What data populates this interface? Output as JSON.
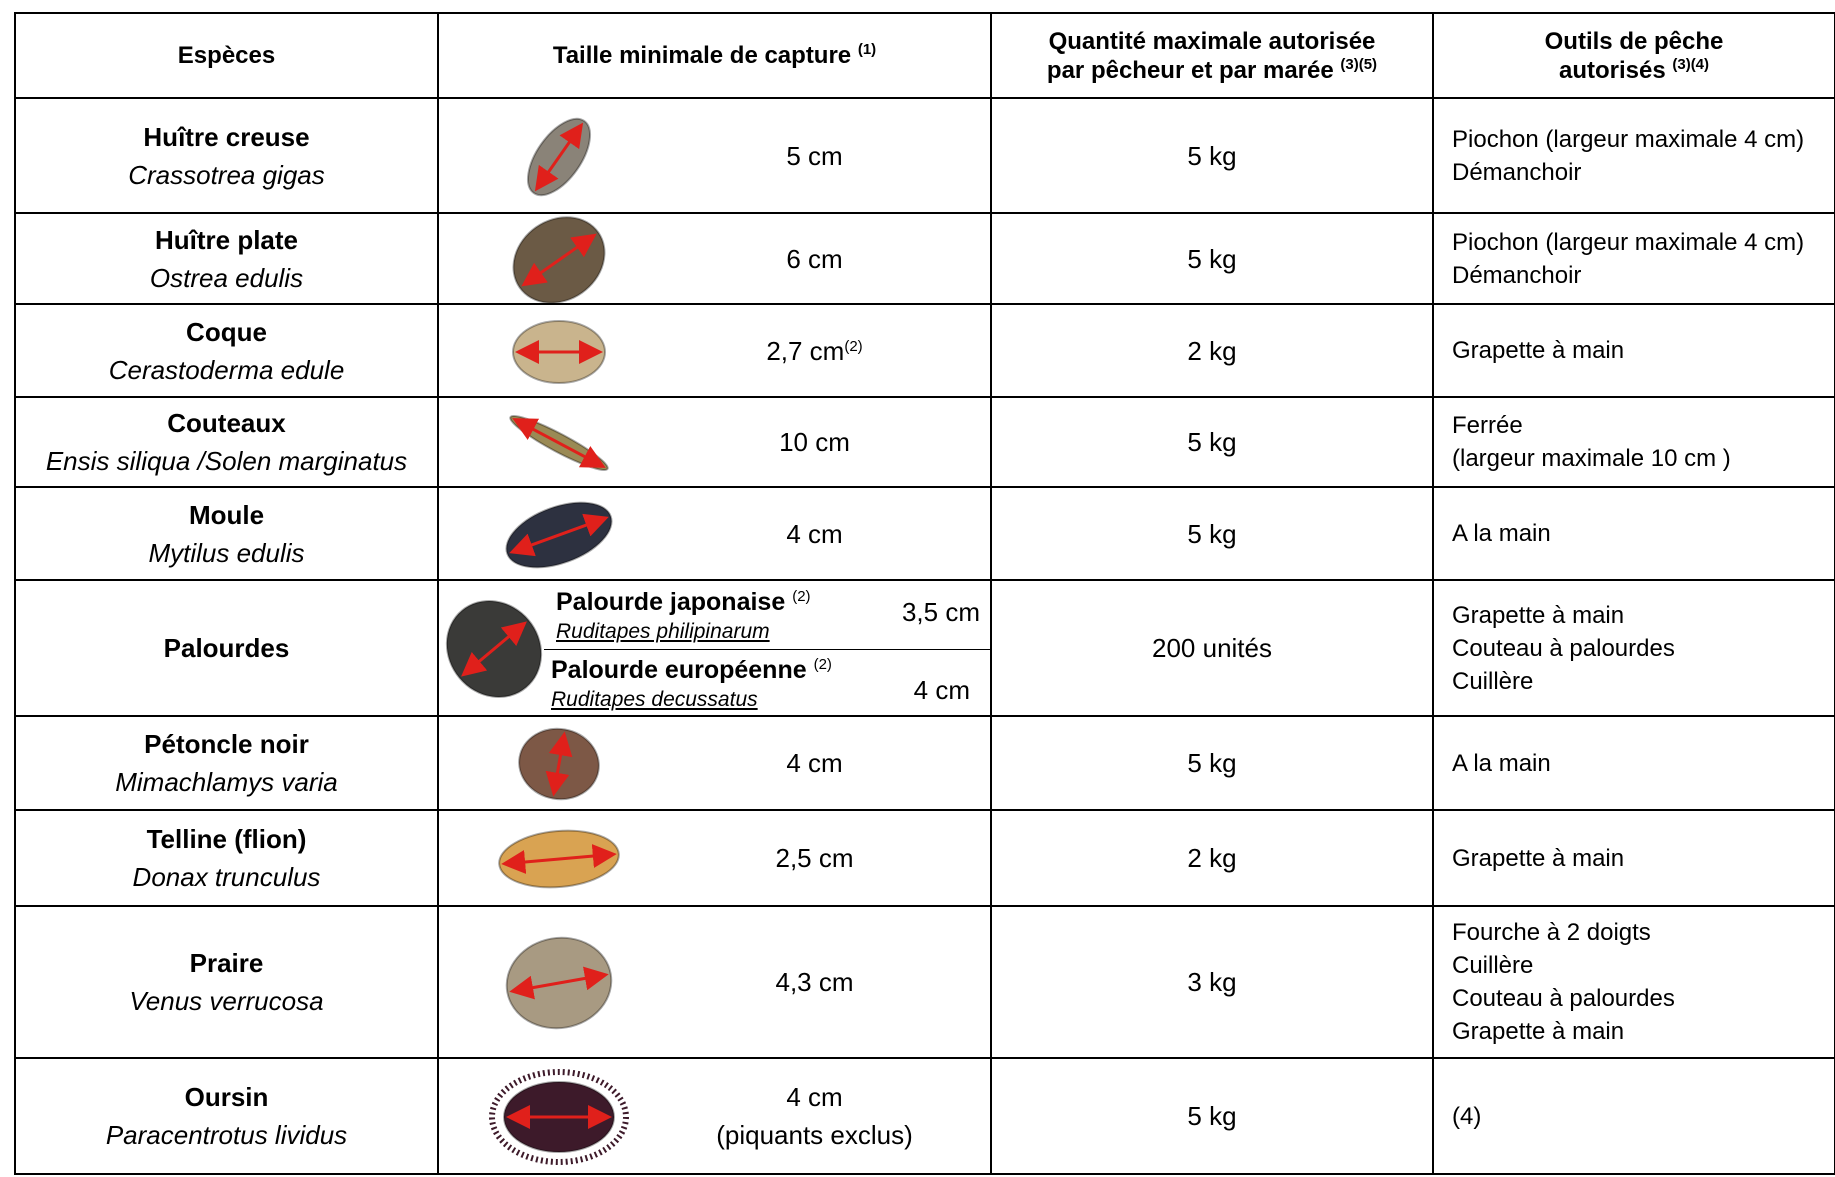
{
  "header": {
    "columns": [
      {
        "lines": [
          "Espèces"
        ]
      },
      {
        "lines": [
          "Taille minimale de capture"
        ],
        "note": "(1)"
      },
      {
        "lines": [
          "Quantité maximale autorisée",
          "par pêcheur et par marée"
        ],
        "note": "(3)(5)"
      },
      {
        "lines": [
          "Outils de pêche",
          "autorisés"
        ],
        "note": "(3)(4)"
      }
    ]
  },
  "rows": [
    {
      "common": "Huître creuse",
      "latin": "Crassotrea gigas",
      "size": [
        "5 cm"
      ],
      "quantity": "5 kg",
      "tools": [
        "Piochon (largeur maximale 4 cm)",
        "Démanchoir"
      ]
    },
    {
      "common": "Huître plate",
      "latin": "Ostrea edulis",
      "size": [
        "6 cm"
      ],
      "quantity": "5 kg",
      "tools": [
        "Piochon (largeur maximale 4 cm)",
        "Démanchoir"
      ]
    },
    {
      "common": "Coque",
      "latin": "Cerastoderma edule",
      "size": [
        "2,7 cm"
      ],
      "size_note": "(2)",
      "quantity": "2 kg",
      "tools": [
        "Grapette à main"
      ]
    },
    {
      "common": "Couteaux",
      "latin": "Ensis siliqua /Solen marginatus",
      "size": [
        "10 cm"
      ],
      "quantity": "5 kg",
      "tools": [
        "Ferrée",
        "(largeur maximale 10 cm )"
      ]
    },
    {
      "common": "Moule",
      "latin": "Mytilus edulis",
      "size": [
        "4 cm"
      ],
      "quantity": "5 kg",
      "tools": [
        "A la main"
      ]
    },
    {
      "common": "Palourdes",
      "subspecies": [
        {
          "name": "Palourde japonaise",
          "note": "(2)",
          "latin": "Ruditapes philipinarum",
          "size": "3,5 cm"
        },
        {
          "name": "Palourde européenne",
          "note": "(2)",
          "latin": "Ruditapes decussatus",
          "size": "4 cm"
        }
      ],
      "quantity": "200 unités",
      "tools": [
        "Grapette à main",
        "Couteau à palourdes",
        "Cuillère"
      ]
    },
    {
      "common": "Pétoncle noir",
      "latin": "Mimachlamys varia",
      "size": [
        "4 cm"
      ],
      "quantity": "5 kg",
      "tools": [
        "A la main"
      ]
    },
    {
      "common": "Telline (flion)",
      "latin": "Donax trunculus",
      "size": [
        "2,5 cm"
      ],
      "quantity": "2 kg",
      "tools": [
        "Grapette à main"
      ]
    },
    {
      "common": "Praire",
      "latin": "Venus verrucosa",
      "size": [
        "4,3 cm"
      ],
      "quantity": "3 kg",
      "tools": [
        "Fourche à 2 doigts",
        "Cuillère",
        "Couteau à palourdes",
        "Grapette à main"
      ]
    },
    {
      "common": "Oursin",
      "latin": "Paracentrotus lividus",
      "size": [
        "4 cm",
        "(piquants exclus)"
      ],
      "quantity": "5 kg",
      "tools": [
        "(4)"
      ]
    }
  ]
}
